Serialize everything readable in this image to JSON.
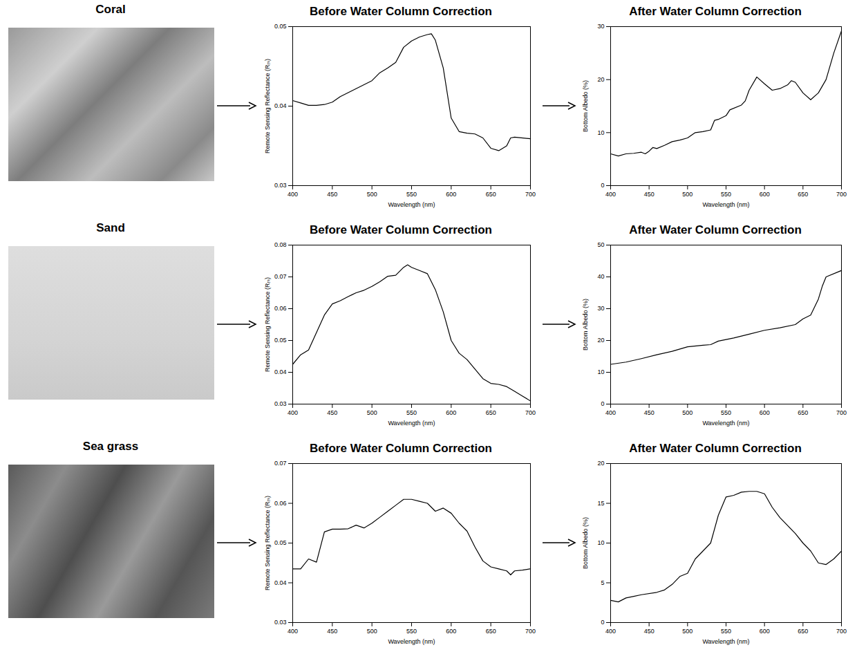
{
  "row_labels": [
    "Coral",
    "Sand",
    "Sea grass"
  ],
  "chart_data": [
    {
      "type": "line",
      "title": "Before Water Column Correction",
      "xlabel": "Wavelength (nm)",
      "ylabel": "Remote Sensing Reflectance (Rᵣₛ)",
      "color": "#000000",
      "x": [
        400,
        410,
        420,
        430,
        440,
        450,
        460,
        470,
        480,
        490,
        500,
        510,
        520,
        530,
        540,
        550,
        560,
        570,
        575,
        580,
        590,
        600,
        610,
        620,
        630,
        640,
        650,
        660,
        670,
        675,
        680,
        700
      ],
      "values": [
        0.0407,
        0.0404,
        0.0401,
        0.0401,
        0.0402,
        0.0405,
        0.0412,
        0.0417,
        0.0422,
        0.0427,
        0.0432,
        0.0442,
        0.0448,
        0.0455,
        0.0474,
        0.0482,
        0.0487,
        0.049,
        0.0491,
        0.0483,
        0.0448,
        0.0385,
        0.0368,
        0.0366,
        0.0365,
        0.036,
        0.0347,
        0.0344,
        0.035,
        0.036,
        0.0361,
        0.0359
      ],
      "xlim": [
        400,
        700
      ],
      "ylim": [
        0.03,
        0.05
      ],
      "xticks": [
        400,
        450,
        500,
        550,
        600,
        650,
        700
      ],
      "yticks": [
        0.03,
        0.04,
        0.05
      ]
    },
    {
      "type": "line",
      "title": "After Water Column Correction",
      "xlabel": "Wavelength (nm)",
      "ylabel": "Bottom Albedo (%)",
      "color": "#000000",
      "x": [
        400,
        410,
        420,
        430,
        440,
        445,
        450,
        455,
        460,
        470,
        480,
        490,
        500,
        510,
        520,
        530,
        535,
        540,
        550,
        555,
        570,
        575,
        580,
        590,
        600,
        610,
        620,
        630,
        635,
        640,
        650,
        660,
        670,
        680,
        690,
        700
      ],
      "values": [
        6,
        5.6,
        6,
        6.1,
        6.3,
        6.0,
        6.5,
        7.2,
        7.0,
        7.6,
        8.3,
        8.6,
        9.0,
        10.0,
        10.2,
        10.5,
        12.3,
        12.5,
        13.2,
        14.3,
        15.2,
        16.0,
        18.0,
        20.5,
        19.2,
        18.0,
        18.3,
        19.0,
        19.8,
        19.5,
        17.5,
        16.2,
        17.5,
        20,
        25,
        29.2
      ],
      "xlim": [
        400,
        700
      ],
      "ylim": [
        0,
        30
      ],
      "xticks": [
        400,
        450,
        500,
        550,
        600,
        650,
        700
      ],
      "yticks": [
        0,
        10,
        20,
        30
      ]
    },
    {
      "type": "line",
      "title": "Before Water Column Correction",
      "xlabel": "Wavelength (nm)",
      "ylabel": "Remote Sensing Reflectance (Rᵣₛ)",
      "color": "#000000",
      "x": [
        400,
        410,
        420,
        430,
        440,
        450,
        460,
        470,
        480,
        490,
        500,
        510,
        520,
        530,
        540,
        545,
        550,
        560,
        570,
        580,
        590,
        600,
        610,
        620,
        630,
        640,
        650,
        660,
        670,
        680,
        690,
        700
      ],
      "values": [
        0.0425,
        0.0455,
        0.047,
        0.0525,
        0.058,
        0.0615,
        0.0625,
        0.0638,
        0.065,
        0.0658,
        0.067,
        0.0685,
        0.0702,
        0.0705,
        0.073,
        0.0738,
        0.073,
        0.072,
        0.071,
        0.066,
        0.059,
        0.05,
        0.046,
        0.044,
        0.041,
        0.038,
        0.0365,
        0.0362,
        0.0355,
        0.034,
        0.0325,
        0.031
      ],
      "xlim": [
        400,
        700
      ],
      "ylim": [
        0.03,
        0.08
      ],
      "xticks": [
        400,
        450,
        500,
        550,
        600,
        650,
        700
      ],
      "yticks": [
        0.03,
        0.04,
        0.05,
        0.06,
        0.07,
        0.08
      ]
    },
    {
      "type": "line",
      "title": "After Water Column Correction",
      "xlabel": "Wavelength (nm)",
      "ylabel": "Bottom Albedo (%)",
      "color": "#000000",
      "x": [
        400,
        420,
        440,
        460,
        480,
        500,
        520,
        530,
        540,
        560,
        580,
        600,
        620,
        640,
        650,
        660,
        670,
        675,
        680,
        700
      ],
      "values": [
        12.5,
        13.2,
        14.3,
        15.5,
        16.6,
        18.0,
        18.5,
        18.7,
        19.8,
        20.8,
        22.0,
        23.2,
        24.0,
        25.0,
        26.8,
        28.0,
        33.0,
        37.0,
        40.0,
        42.0
      ],
      "xlim": [
        400,
        700
      ],
      "ylim": [
        0,
        50
      ],
      "xticks": [
        400,
        450,
        500,
        550,
        600,
        650,
        700
      ],
      "yticks": [
        0,
        10,
        20,
        30,
        40,
        50
      ]
    },
    {
      "type": "line",
      "title": "Before Water Column Correction",
      "xlabel": "Wavelength (nm)",
      "ylabel": "Remote Sensing Reflectance (Rᵣₛ)",
      "color": "#000000",
      "x": [
        400,
        410,
        420,
        430,
        440,
        450,
        460,
        470,
        480,
        490,
        500,
        510,
        520,
        530,
        540,
        550,
        560,
        570,
        580,
        590,
        600,
        610,
        620,
        630,
        640,
        650,
        660,
        670,
        675,
        680,
        690,
        700
      ],
      "values": [
        0.0435,
        0.0435,
        0.046,
        0.0452,
        0.0528,
        0.0535,
        0.0535,
        0.0536,
        0.0545,
        0.0538,
        0.055,
        0.0565,
        0.058,
        0.0595,
        0.061,
        0.061,
        0.0605,
        0.06,
        0.058,
        0.0588,
        0.0575,
        0.055,
        0.053,
        0.049,
        0.0455,
        0.044,
        0.0435,
        0.043,
        0.042,
        0.043,
        0.0432,
        0.0435
      ],
      "xlim": [
        400,
        700
      ],
      "ylim": [
        0.03,
        0.07
      ],
      "xticks": [
        400,
        450,
        500,
        550,
        600,
        650,
        700
      ],
      "yticks": [
        0.03,
        0.04,
        0.05,
        0.06,
        0.07
      ]
    },
    {
      "type": "line",
      "title": "After Water Column Correction",
      "xlabel": "Wavelength (nm)",
      "ylabel": "Bottom Albedo (%)",
      "color": "#000000",
      "x": [
        400,
        410,
        420,
        430,
        440,
        460,
        470,
        480,
        490,
        500,
        510,
        520,
        530,
        540,
        550,
        560,
        570,
        580,
        590,
        600,
        610,
        620,
        630,
        640,
        650,
        660,
        670,
        680,
        690,
        700
      ],
      "values": [
        2.8,
        2.6,
        3.1,
        3.3,
        3.5,
        3.8,
        4.1,
        4.8,
        5.8,
        6.2,
        8.0,
        9.0,
        10.0,
        13.5,
        15.8,
        16.0,
        16.4,
        16.5,
        16.5,
        16.2,
        14.5,
        13.2,
        12.2,
        11.2,
        10.0,
        9.0,
        7.5,
        7.3,
        8.0,
        9.0
      ],
      "xlim": [
        400,
        700
      ],
      "ylim": [
        0,
        20
      ],
      "xticks": [
        400,
        450,
        500,
        550,
        600,
        650,
        700
      ],
      "yticks": [
        0,
        5,
        10,
        15,
        20
      ]
    }
  ]
}
